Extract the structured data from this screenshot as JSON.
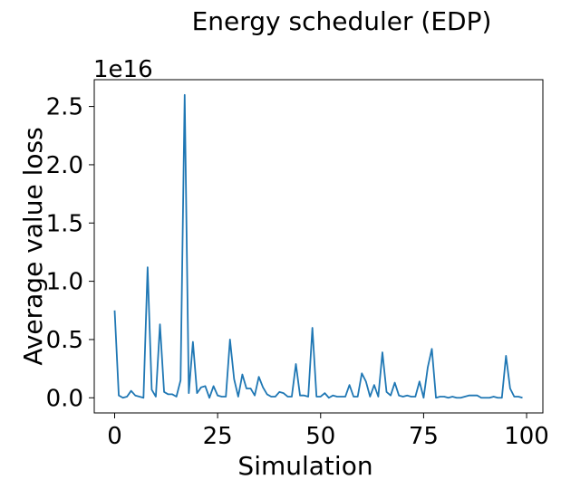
{
  "chart_data": {
    "type": "line",
    "title": "Energy scheduler (EDP)",
    "xlabel": "Simulation",
    "ylabel": "Average value loss",
    "y_offset_label": "1e16",
    "xlim": [
      -4.95,
      103.95
    ],
    "ylim": [
      -0.13,
      2.73
    ],
    "x_ticks": [
      0,
      25,
      50,
      75,
      100
    ],
    "x_tick_labels": [
      "0",
      "25",
      "50",
      "75",
      "100"
    ],
    "y_ticks": [
      0.0,
      0.5,
      1.0,
      1.5,
      2.0,
      2.5
    ],
    "y_tick_labels": [
      "0.0",
      "0.5",
      "1.0",
      "1.5",
      "2.0",
      "2.5"
    ],
    "grid": false,
    "legend": "none",
    "line_color": "#1f77b4",
    "x": [
      0,
      1,
      2,
      3,
      4,
      5,
      6,
      7,
      8,
      9,
      10,
      11,
      12,
      13,
      14,
      15,
      16,
      17,
      18,
      19,
      20,
      21,
      22,
      23,
      24,
      25,
      26,
      27,
      28,
      29,
      30,
      31,
      32,
      33,
      34,
      35,
      36,
      37,
      38,
      39,
      40,
      41,
      42,
      43,
      44,
      45,
      46,
      47,
      48,
      49,
      50,
      51,
      52,
      53,
      54,
      55,
      56,
      57,
      58,
      59,
      60,
      61,
      62,
      63,
      64,
      65,
      66,
      67,
      68,
      69,
      70,
      71,
      72,
      73,
      74,
      75,
      76,
      77,
      78,
      79,
      80,
      81,
      82,
      83,
      84,
      85,
      86,
      87,
      88,
      89,
      90,
      91,
      92,
      93,
      94,
      95,
      96,
      97,
      98,
      99
    ],
    "series": [
      {
        "values": [
          0.75,
          0.02,
          0.0,
          0.01,
          0.06,
          0.02,
          0.01,
          0.0,
          1.12,
          0.07,
          0.01,
          0.63,
          0.05,
          0.03,
          0.03,
          0.01,
          0.15,
          2.6,
          0.04,
          0.48,
          0.04,
          0.09,
          0.1,
          0.0,
          0.1,
          0.02,
          0.01,
          0.01,
          0.5,
          0.16,
          0.01,
          0.2,
          0.08,
          0.08,
          0.02,
          0.18,
          0.09,
          0.03,
          0.01,
          0.01,
          0.05,
          0.04,
          0.01,
          0.01,
          0.29,
          0.02,
          0.02,
          0.01,
          0.6,
          0.01,
          0.01,
          0.04,
          0.0,
          0.02,
          0.01,
          0.01,
          0.01,
          0.11,
          0.01,
          0.01,
          0.21,
          0.14,
          0.01,
          0.11,
          0.01,
          0.39,
          0.05,
          0.02,
          0.13,
          0.02,
          0.01,
          0.02,
          0.01,
          0.01,
          0.14,
          0.0,
          0.26,
          0.42,
          0.0,
          0.01,
          0.01,
          0.0,
          0.01,
          0.0,
          0.0,
          0.01,
          0.02,
          0.02,
          0.02,
          0.0,
          0.0,
          0.0,
          0.01,
          0.0,
          0.0,
          0.36,
          0.08,
          0.01,
          0.01,
          0.0
        ]
      }
    ]
  }
}
